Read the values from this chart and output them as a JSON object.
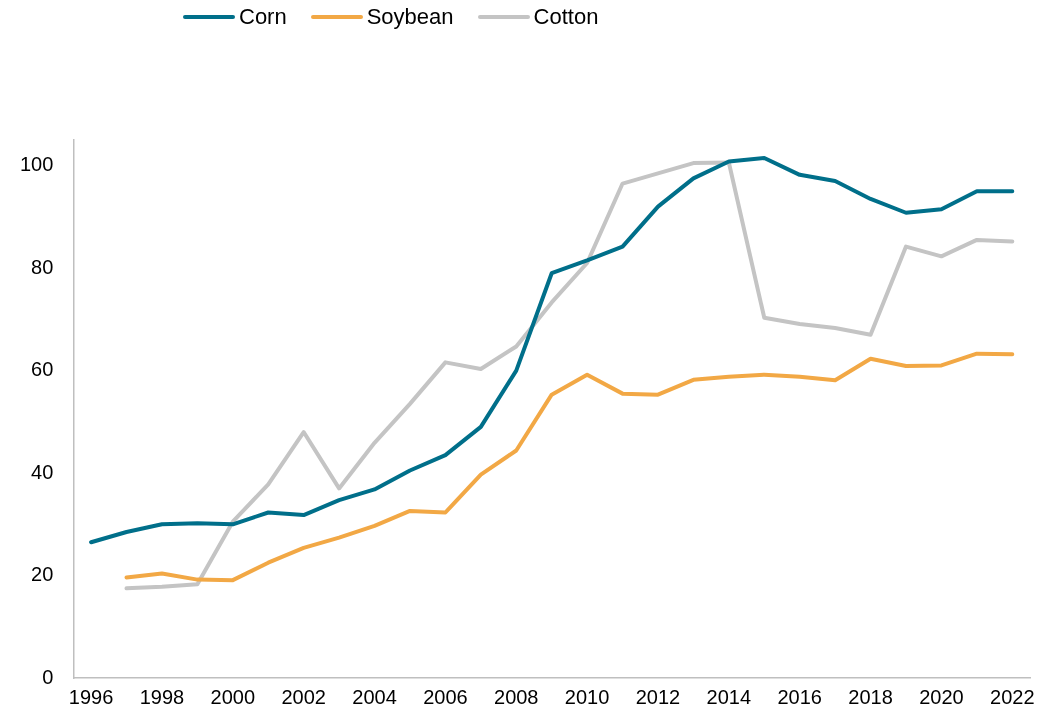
{
  "chart_data": {
    "type": "line",
    "categories": [
      "1996",
      null,
      "1998",
      null,
      "2000",
      null,
      "2002",
      null,
      "2004",
      null,
      "2006",
      null,
      "2008",
      null,
      "2010",
      null,
      "2012",
      null,
      "2014",
      null,
      "2016",
      null,
      "2018",
      null,
      "2020",
      null,
      "2022"
    ],
    "series": [
      {
        "name": "Corn",
        "color": "#006f8a",
        "values": [
          26.5,
          28.5,
          30,
          30.2,
          30,
          32.3,
          31.8,
          34.7,
          36.8,
          40.5,
          43.5,
          49,
          60,
          79,
          81.5,
          84.2,
          92,
          97.5,
          100.8,
          101.5,
          98.2,
          97,
          93.5,
          90.8,
          91.5,
          95,
          95
        ]
      },
      {
        "name": "Soybean",
        "color": "#f2a845",
        "values": [
          null,
          19.6,
          20.4,
          19.2,
          19.1,
          22.5,
          25.4,
          27.4,
          29.7,
          32.6,
          32.3,
          39.7,
          44.4,
          55.3,
          59.2,
          55.5,
          55.3,
          58.2,
          58.8,
          59.2,
          58.8,
          58.1,
          62.3,
          60.9,
          61,
          63.3,
          63.2
        ]
      },
      {
        "name": "Cotton",
        "color": "#c4c4c4",
        "values": [
          null,
          17.5,
          17.8,
          18.3,
          30.5,
          37.8,
          48,
          37,
          45.9,
          53.5,
          61.6,
          60.3,
          64.7,
          73.3,
          81,
          96.5,
          98.5,
          100.5,
          100.6,
          70.3,
          69.1,
          68.3,
          67,
          84.2,
          82.3,
          85.5,
          85.2
        ]
      }
    ],
    "ylim": [
      0,
      105
    ],
    "yticks": [
      0,
      20,
      40,
      60,
      80,
      100
    ],
    "grid": false,
    "legend": "top left",
    "marker": "none",
    "line_style": "solid"
  }
}
